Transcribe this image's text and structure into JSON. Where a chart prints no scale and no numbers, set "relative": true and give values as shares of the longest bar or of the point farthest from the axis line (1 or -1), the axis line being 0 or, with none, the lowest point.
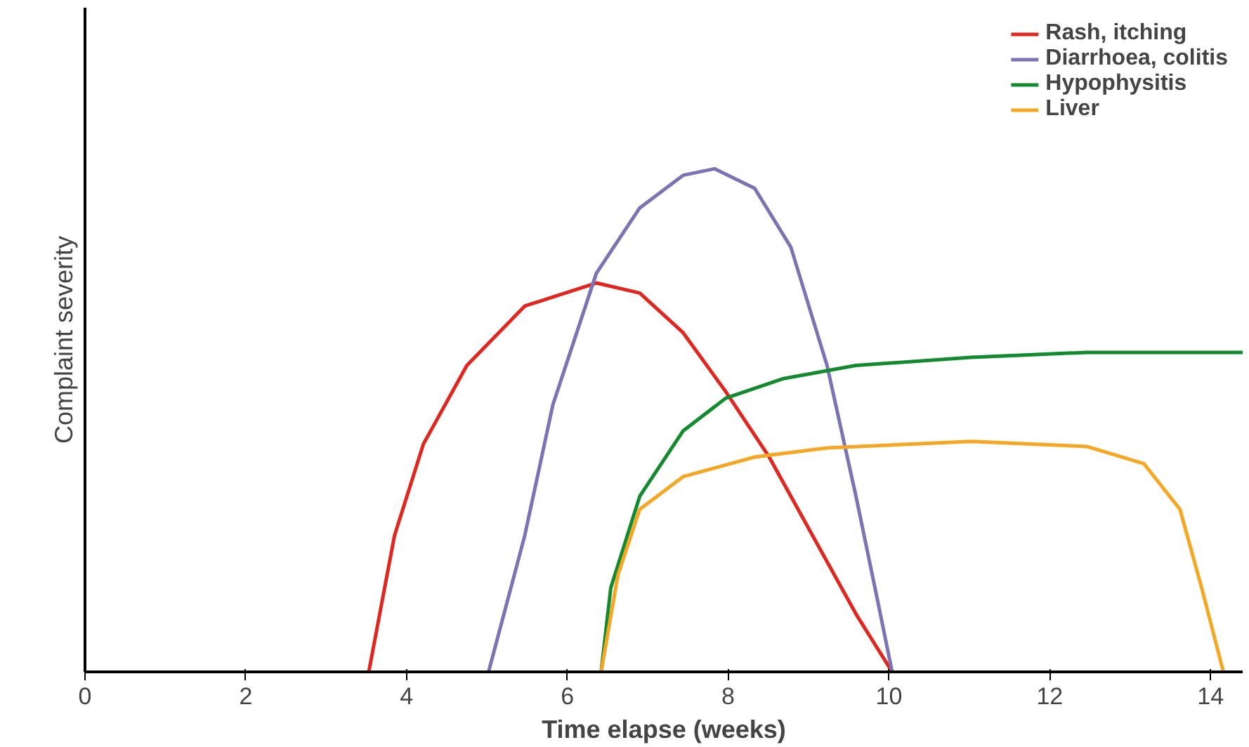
{
  "chart_data": {
    "type": "line",
    "relative": true,
    "xlabel": "Time elapse (weeks)",
    "ylabel": "Complaint severity",
    "xlim": [
      0,
      14.4
    ],
    "xticks": [
      0,
      2,
      4,
      6,
      8,
      10,
      12,
      14
    ],
    "grid": false,
    "legend": "top right",
    "marker": "none",
    "line_style": "solid",
    "series": [
      {
        "name": "Rash, itching",
        "color": "#e0271f",
        "x": [
          3.53,
          3.85,
          4.21,
          4.75,
          5.47,
          6.36,
          6.9,
          7.44,
          7.97,
          8.51,
          9.05,
          9.59,
          10.04
        ],
        "values": [
          0,
          0.271,
          0.453,
          0.609,
          0.727,
          0.773,
          0.753,
          0.674,
          0.557,
          0.427,
          0.271,
          0.115,
          0
        ]
      },
      {
        "name": "Diarrhoea, colitis",
        "color": "#7b74b4",
        "x": [
          5.02,
          5.47,
          5.82,
          6.36,
          6.9,
          7.44,
          7.83,
          8.33,
          8.78,
          9.23,
          9.59,
          9.86,
          10.04
        ],
        "values": [
          0,
          0.271,
          0.531,
          0.792,
          0.922,
          0.987,
          1,
          0.961,
          0.844,
          0.609,
          0.349,
          0.141,
          0
        ]
      },
      {
        "name": "Hypophysitis",
        "color": "#138a2e",
        "x": [
          6.42,
          6.54,
          6.9,
          7.44,
          7.97,
          8.69,
          9.59,
          11.02,
          12.46,
          14.4
        ],
        "values": [
          0,
          0.167,
          0.349,
          0.479,
          0.544,
          0.583,
          0.609,
          0.625,
          0.635,
          0.635
        ]
      },
      {
        "name": "Liver",
        "color": "#f5a623",
        "x": [
          6.42,
          6.63,
          6.9,
          7.44,
          8.33,
          9.23,
          11.02,
          12.46,
          13.17,
          13.62,
          13.89,
          14.16
        ],
        "values": [
          0,
          0.193,
          0.323,
          0.388,
          0.427,
          0.445,
          0.458,
          0.448,
          0.414,
          0.323,
          0.167,
          0
        ]
      }
    ]
  }
}
